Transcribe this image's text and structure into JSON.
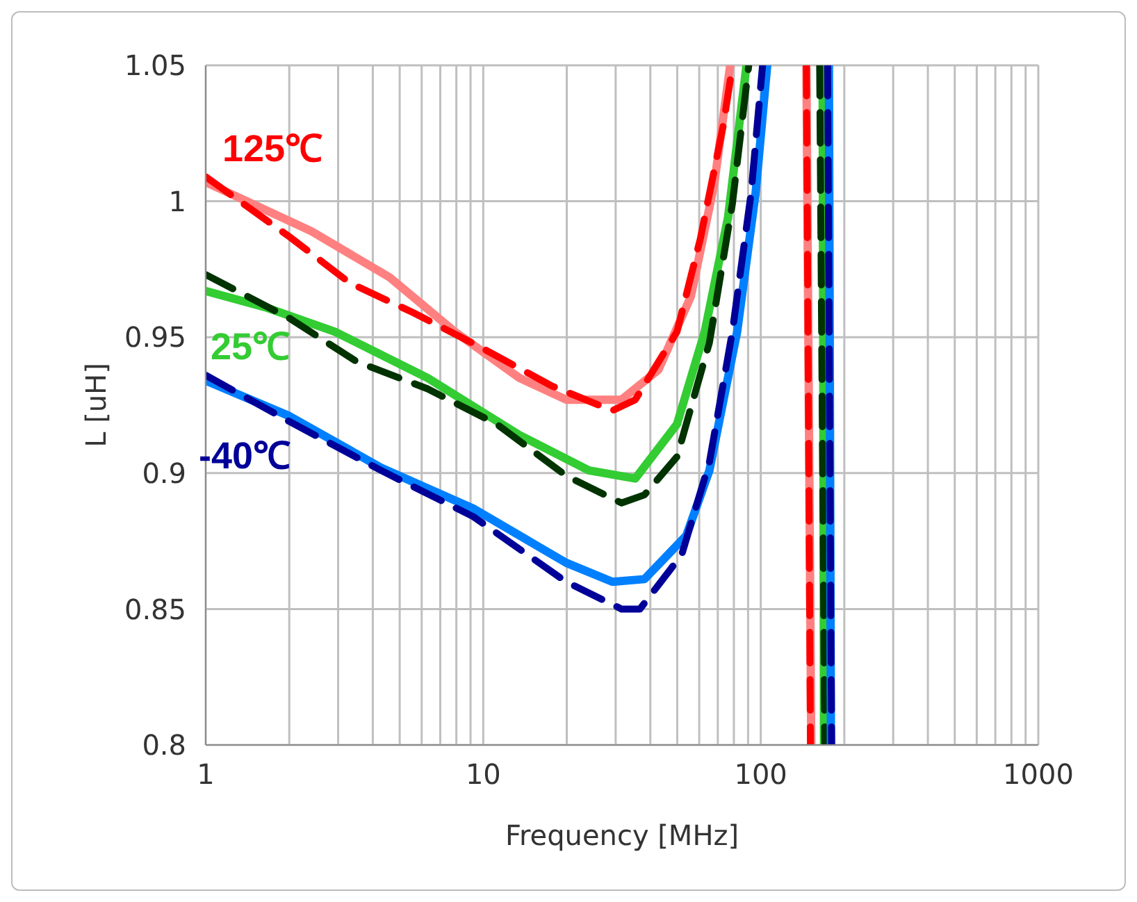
{
  "chart_data": {
    "type": "line",
    "xlabel": "Frequency [MHz]",
    "ylabel": "L [uH]",
    "log": "x",
    "grid": true,
    "legend": false,
    "marker": "none",
    "xlim": [
      1,
      1000
    ],
    "xticks": [
      1,
      {
        "value": 2,
        "label": null
      },
      {
        "value": 3,
        "label": null
      },
      {
        "value": 4,
        "label": null
      },
      {
        "value": 5,
        "label": null
      },
      {
        "value": 6,
        "label": null
      },
      {
        "value": 7,
        "label": null
      },
      {
        "value": 8,
        "label": null
      },
      {
        "value": 9,
        "label": null
      },
      10,
      {
        "value": 20,
        "label": null
      },
      {
        "value": 30,
        "label": null
      },
      {
        "value": 40,
        "label": null
      },
      {
        "value": 50,
        "label": null
      },
      {
        "value": 60,
        "label": null
      },
      {
        "value": 70,
        "label": null
      },
      {
        "value": 80,
        "label": null
      },
      {
        "value": 90,
        "label": null
      },
      100,
      {
        "value": 200,
        "label": null
      },
      {
        "value": 300,
        "label": null
      },
      {
        "value": 400,
        "label": null
      },
      {
        "value": 500,
        "label": null
      },
      {
        "value": 600,
        "label": null
      },
      {
        "value": 700,
        "label": null
      },
      {
        "value": 800,
        "label": null
      },
      {
        "value": 900,
        "label": null
      },
      1000
    ],
    "ylim": [
      0.8,
      1.05
    ],
    "yticks": [
      0.8,
      0.85,
      0.9,
      0.95,
      1,
      1.05
    ],
    "series": [
      {
        "color": "#ff8080",
        "line_style": "solid",
        "x": [
          1,
          2.4,
          4.6,
          7.9,
          13.5,
          19.9,
          31.5,
          42.8,
          56,
          67.9,
          77.6,
          null,
          146,
          152
        ],
        "values": [
          1.007,
          0.989,
          0.972,
          0.952,
          0.935,
          0.927,
          0.927,
          0.938,
          0.965,
          1.006,
          1.05,
          null,
          1.05,
          0.8
        ]
      },
      {
        "name": "125℃",
        "color": "#ff0000",
        "line_style": "dashed",
        "x": [
          1,
          2,
          3.3,
          5.6,
          9.9,
          17.7,
          29.2,
          35.3,
          49.9,
          60.5,
          73.3,
          79.1,
          null,
          146,
          151
        ],
        "values": [
          1.009,
          0.987,
          0.97,
          0.959,
          0.946,
          0.932,
          0.923,
          0.927,
          0.952,
          0.986,
          1.028,
          1.05,
          null,
          1.05,
          0.8
        ]
      },
      {
        "name": "25℃",
        "color": "#33cc33",
        "line_style": "solid",
        "x": [
          1,
          1.64,
          2.92,
          6.3,
          13.5,
          24,
          35.3,
          49.9,
          62.8,
          76.2,
          88.8,
          null,
          167,
          169
        ],
        "values": [
          0.967,
          0.961,
          0.952,
          0.935,
          0.914,
          0.901,
          0.898,
          0.918,
          0.952,
          0.994,
          1.05,
          null,
          1.05,
          0.8
        ]
      },
      {
        "color": "#003300",
        "line_style": "dashed",
        "x": [
          1,
          2,
          3.5,
          6.3,
          11.2,
          19.9,
          31.5,
          38.1,
          49.9,
          65.3,
          79,
          90.5,
          null,
          163,
          170
        ],
        "values": [
          0.973,
          0.957,
          0.941,
          0.931,
          0.918,
          0.899,
          0.889,
          0.892,
          0.906,
          0.948,
          0.999,
          1.05,
          null,
          1.05,
          0.8
        ]
      },
      {
        "color": "#0080ff",
        "line_style": "solid",
        "x": [
          1,
          2,
          4.28,
          9.2,
          19.9,
          29.2,
          38.1,
          53.9,
          65.3,
          82.2,
          95.8,
          105.5,
          null,
          176,
          179
        ],
        "values": [
          0.934,
          0.921,
          0.902,
          0.887,
          0.867,
          0.86,
          0.861,
          0.877,
          0.901,
          0.952,
          1.003,
          1.05,
          null,
          1.05,
          0.8
        ]
      },
      {
        "name": "-40℃",
        "color": "#000099",
        "line_style": "dashed",
        "x": [
          1,
          2,
          4.28,
          9.2,
          19.9,
          31.5,
          36.7,
          51.9,
          65.3,
          79,
          92.3,
          101.5,
          null,
          174,
          180
        ],
        "values": [
          0.936,
          0.919,
          0.901,
          0.884,
          0.86,
          0.85,
          0.85,
          0.87,
          0.904,
          0.952,
          1.003,
          1.05,
          null,
          1.05,
          0.8
        ]
      }
    ]
  }
}
